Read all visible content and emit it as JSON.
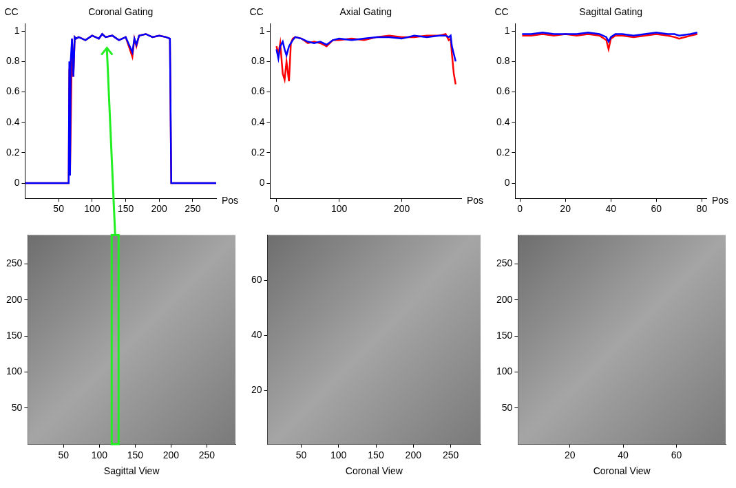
{
  "chart_data": [
    {
      "type": "line",
      "title": "Coronal Gating",
      "ylabel": "CC",
      "xlabel": "Pos",
      "x": [
        0,
        65,
        66,
        67,
        68,
        70,
        72,
        74,
        76,
        80,
        90,
        100,
        110,
        115,
        120,
        130,
        140,
        150,
        160,
        163,
        166,
        170,
        180,
        190,
        200,
        210,
        216,
        218,
        220,
        285
      ],
      "series": [
        {
          "color": "#ff0000",
          "values": [
            0,
            0,
            0.75,
            0.05,
            0.35,
            0.95,
            0.7,
            0.96,
            0.95,
            0.96,
            0.94,
            0.97,
            0.95,
            0.98,
            0.96,
            0.97,
            0.94,
            0.96,
            0.83,
            0.95,
            0.9,
            0.97,
            0.98,
            0.96,
            0.97,
            0.96,
            0.95,
            0,
            0,
            0
          ]
        },
        {
          "color": "#0000ff",
          "values": [
            0,
            0,
            0.8,
            0.05,
            0.8,
            0.95,
            0.7,
            0.96,
            0.95,
            0.96,
            0.94,
            0.97,
            0.95,
            0.98,
            0.96,
            0.97,
            0.94,
            0.96,
            0.86,
            0.95,
            0.91,
            0.97,
            0.98,
            0.96,
            0.97,
            0.96,
            0.95,
            0,
            0,
            0
          ]
        }
      ],
      "xlim": [
        0,
        285
      ],
      "xticks": [
        50,
        100,
        150,
        200,
        250
      ],
      "ylim": [
        -0.1,
        1.05
      ],
      "yticks": [
        0,
        0.2,
        0.4,
        0.6,
        0.8,
        1
      ],
      "grid": false,
      "highlight_pos": 122
    },
    {
      "type": "line",
      "title": "Axial Gating",
      "ylabel": "CC",
      "xlabel": "Pos",
      "x": [
        0,
        3,
        6,
        10,
        13,
        16,
        20,
        23,
        26,
        30,
        40,
        50,
        60,
        70,
        80,
        90,
        100,
        120,
        140,
        160,
        180,
        200,
        220,
        240,
        260,
        270,
        275,
        278,
        280,
        283,
        286
      ],
      "series": [
        {
          "color": "#ff0000",
          "values": [
            0.9,
            0.85,
            0.92,
            0.72,
            0.68,
            0.8,
            0.67,
            0.92,
            0.95,
            0.96,
            0.95,
            0.92,
            0.93,
            0.92,
            0.9,
            0.94,
            0.94,
            0.95,
            0.94,
            0.96,
            0.97,
            0.96,
            0.96,
            0.97,
            0.97,
            0.98,
            0.94,
            0.95,
            0.85,
            0.72,
            0.65
          ]
        },
        {
          "color": "#0000ff",
          "values": [
            0.88,
            0.82,
            0.9,
            0.93,
            0.88,
            0.84,
            0.9,
            0.92,
            0.94,
            0.96,
            0.95,
            0.93,
            0.92,
            0.93,
            0.91,
            0.94,
            0.95,
            0.94,
            0.95,
            0.96,
            0.96,
            0.95,
            0.97,
            0.96,
            0.97,
            0.97,
            0.96,
            0.97,
            0.9,
            0.85,
            0.8
          ]
        }
      ],
      "xlim": [
        -10,
        295
      ],
      "xticks": [
        0,
        100,
        200
      ],
      "ylim": [
        -0.1,
        1.05
      ],
      "yticks": [
        0,
        0.2,
        0.4,
        0.6,
        0.8,
        1
      ],
      "grid": false
    },
    {
      "type": "line",
      "title": "Sagittal Gating",
      "ylabel": "CC",
      "xlabel": "Pos",
      "x": [
        1,
        5,
        10,
        15,
        20,
        25,
        30,
        35,
        38,
        39,
        40,
        42,
        45,
        50,
        55,
        60,
        65,
        68,
        70,
        75,
        78
      ],
      "series": [
        {
          "color": "#ff0000",
          "values": [
            0.97,
            0.97,
            0.98,
            0.97,
            0.98,
            0.97,
            0.98,
            0.97,
            0.94,
            0.88,
            0.95,
            0.97,
            0.97,
            0.96,
            0.97,
            0.98,
            0.97,
            0.96,
            0.95,
            0.97,
            0.98
          ]
        },
        {
          "color": "#0000ff",
          "values": [
            0.98,
            0.98,
            0.99,
            0.98,
            0.98,
            0.98,
            0.99,
            0.98,
            0.96,
            0.93,
            0.96,
            0.98,
            0.98,
            0.97,
            0.98,
            0.99,
            0.98,
            0.98,
            0.97,
            0.98,
            0.99
          ]
        }
      ],
      "xlim": [
        -2,
        82
      ],
      "xticks": [
        0,
        20,
        40,
        60,
        80
      ],
      "ylim": [
        -0.1,
        1.05
      ],
      "yticks": [
        0,
        0.2,
        0.4,
        0.6,
        0.8,
        1
      ],
      "grid": false
    },
    {
      "type": "image",
      "xlabel": "Sagittal View",
      "xlim": [
        0,
        290
      ],
      "xticks": [
        50,
        100,
        150,
        200,
        250
      ],
      "ylim": [
        0,
        290
      ],
      "yticks": [
        50,
        100,
        150,
        200,
        250
      ],
      "grid": false
    },
    {
      "type": "image",
      "xlabel": "Coronal View",
      "xlim": [
        5,
        290
      ],
      "xticks": [
        50,
        100,
        150,
        200,
        250
      ],
      "ylim": [
        0.5,
        76.5
      ],
      "yticks": [
        20,
        40,
        60
      ],
      "grid": false
    },
    {
      "type": "image",
      "xlabel": "Coronal View",
      "xlim": [
        0.5,
        78.5
      ],
      "xticks": [
        20,
        40,
        60
      ],
      "ylim": [
        0,
        290
      ],
      "yticks": [
        50,
        100,
        150,
        200,
        250
      ],
      "grid": false
    }
  ]
}
